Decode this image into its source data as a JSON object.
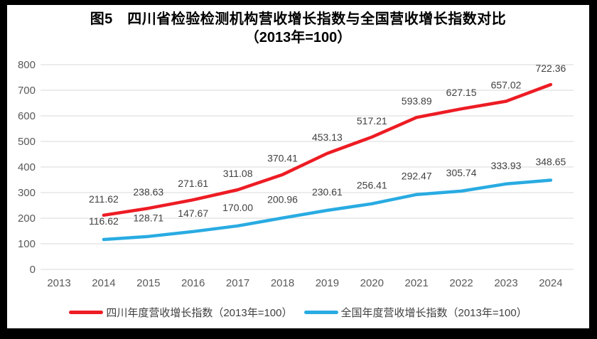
{
  "figure": {
    "title_line1": "图5　四川省检验检测机构营收增长指数与全国营收增长指数对比",
    "title_line2": "（2013年=100）"
  },
  "colors": {
    "sichuan_line": "#ED1C24",
    "national_line": "#29ABE2",
    "gridline": "#D9D9D9",
    "tick_text": "#595959",
    "data_label_text": "#404040",
    "frame": "#000000",
    "background": "#FFFFFF"
  },
  "chart_data": {
    "type": "line",
    "title": "图5　四川省检验检测机构营收增长指数与全国营收增长指数对比（2013年=100）",
    "categories": [
      "2013",
      "2014",
      "2015",
      "2016",
      "2017",
      "2018",
      "2019",
      "2020",
      "2021",
      "2022",
      "2023",
      "2024"
    ],
    "series": [
      {
        "key": "sichuan",
        "name": "四川年度营收增长指数（2013年=100）",
        "color": "#ED1C24",
        "values": [
          null,
          211.62,
          238.63,
          271.61,
          311.08,
          370.41,
          453.13,
          517.21,
          593.89,
          627.15,
          657.02,
          722.36
        ],
        "labels": [
          "",
          "211.62",
          "238.63",
          "271.61",
          "311.08",
          "370.41",
          "453.13",
          "517.21",
          "593.89",
          "627.15",
          "657.02",
          "722.36"
        ]
      },
      {
        "key": "national",
        "name": "全国年度营收增长指数（2013年=100）",
        "color": "#29ABE2",
        "values": [
          null,
          116.62,
          128.71,
          147.67,
          170.0,
          200.96,
          230.61,
          256.41,
          292.47,
          305.74,
          333.93,
          348.65
        ],
        "labels": [
          "",
          "116.62",
          "128.71",
          "147.67",
          "170.00",
          "200.96",
          "230.61",
          "256.41",
          "292.47",
          "305.74",
          "333.93",
          "348.65"
        ]
      }
    ],
    "xlabel": "",
    "ylabel": "",
    "ylim": [
      0,
      800
    ],
    "ytick_step": 100,
    "grid": true,
    "legend_position": "bottom"
  }
}
